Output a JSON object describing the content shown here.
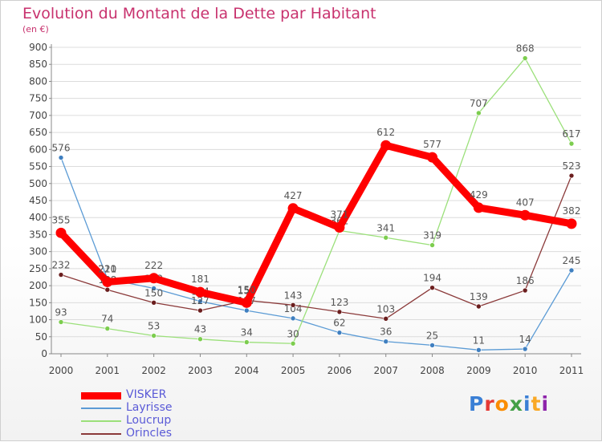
{
  "chart": {
    "title": "Evolution du Montant de la Dette par Habitant",
    "subtitle": "(en €)"
  },
  "colors": {
    "axis": "#888888",
    "grid": "#dcdcdc",
    "tick_label": "#444444",
    "point_label": "#555555"
  },
  "logo": {
    "text": "Proxiti",
    "letter_colors": [
      "#3a7fd5",
      "#e53935",
      "#fb8c00",
      "#43a047",
      "#3a7fd5",
      "#f9a825",
      "#8e24aa"
    ]
  },
  "chart_data": {
    "type": "line",
    "title": "Evolution du Montant de la Dette par Habitant",
    "subtitle": "(en €)",
    "xlabel": "",
    "ylabel": "",
    "x": [
      "2000",
      "2001",
      "2002",
      "2003",
      "2004",
      "2005",
      "2006",
      "2007",
      "2008",
      "2009",
      "2010",
      "2011"
    ],
    "ylim": [
      0,
      900
    ],
    "yticks": [
      0,
      50,
      100,
      150,
      200,
      250,
      300,
      350,
      400,
      450,
      500,
      550,
      600,
      650,
      700,
      750,
      800,
      850,
      900
    ],
    "grid": true,
    "legend_position": "bottom-left",
    "series": [
      {
        "name": "VISKER",
        "color": "#ff0000",
        "point_color": "#ff0000",
        "thick": true,
        "values": [
          355,
          211,
          222,
          181,
          150,
          427,
          371,
          612,
          577,
          429,
          407,
          382
        ]
      },
      {
        "name": "Layrisse",
        "color": "#5b9bd5",
        "point_color": "#3f7fc0",
        "thick": false,
        "values": [
          576,
          220,
          192,
          154,
          127,
          104,
          62,
          36,
          25,
          11,
          14,
          245
        ]
      },
      {
        "name": "Loucrup",
        "color": "#9be07a",
        "point_color": "#7ccd4e",
        "thick": false,
        "values": [
          93,
          74,
          53,
          43,
          34,
          30,
          362,
          341,
          319,
          707,
          868,
          617
        ]
      },
      {
        "name": "Orincles",
        "color": "#8b3a3a",
        "point_color": "#6b1e1e",
        "thick": false,
        "values": [
          232,
          188,
          150,
          127,
          157,
          143,
          123,
          103,
          194,
          139,
          186,
          523
        ]
      }
    ]
  }
}
